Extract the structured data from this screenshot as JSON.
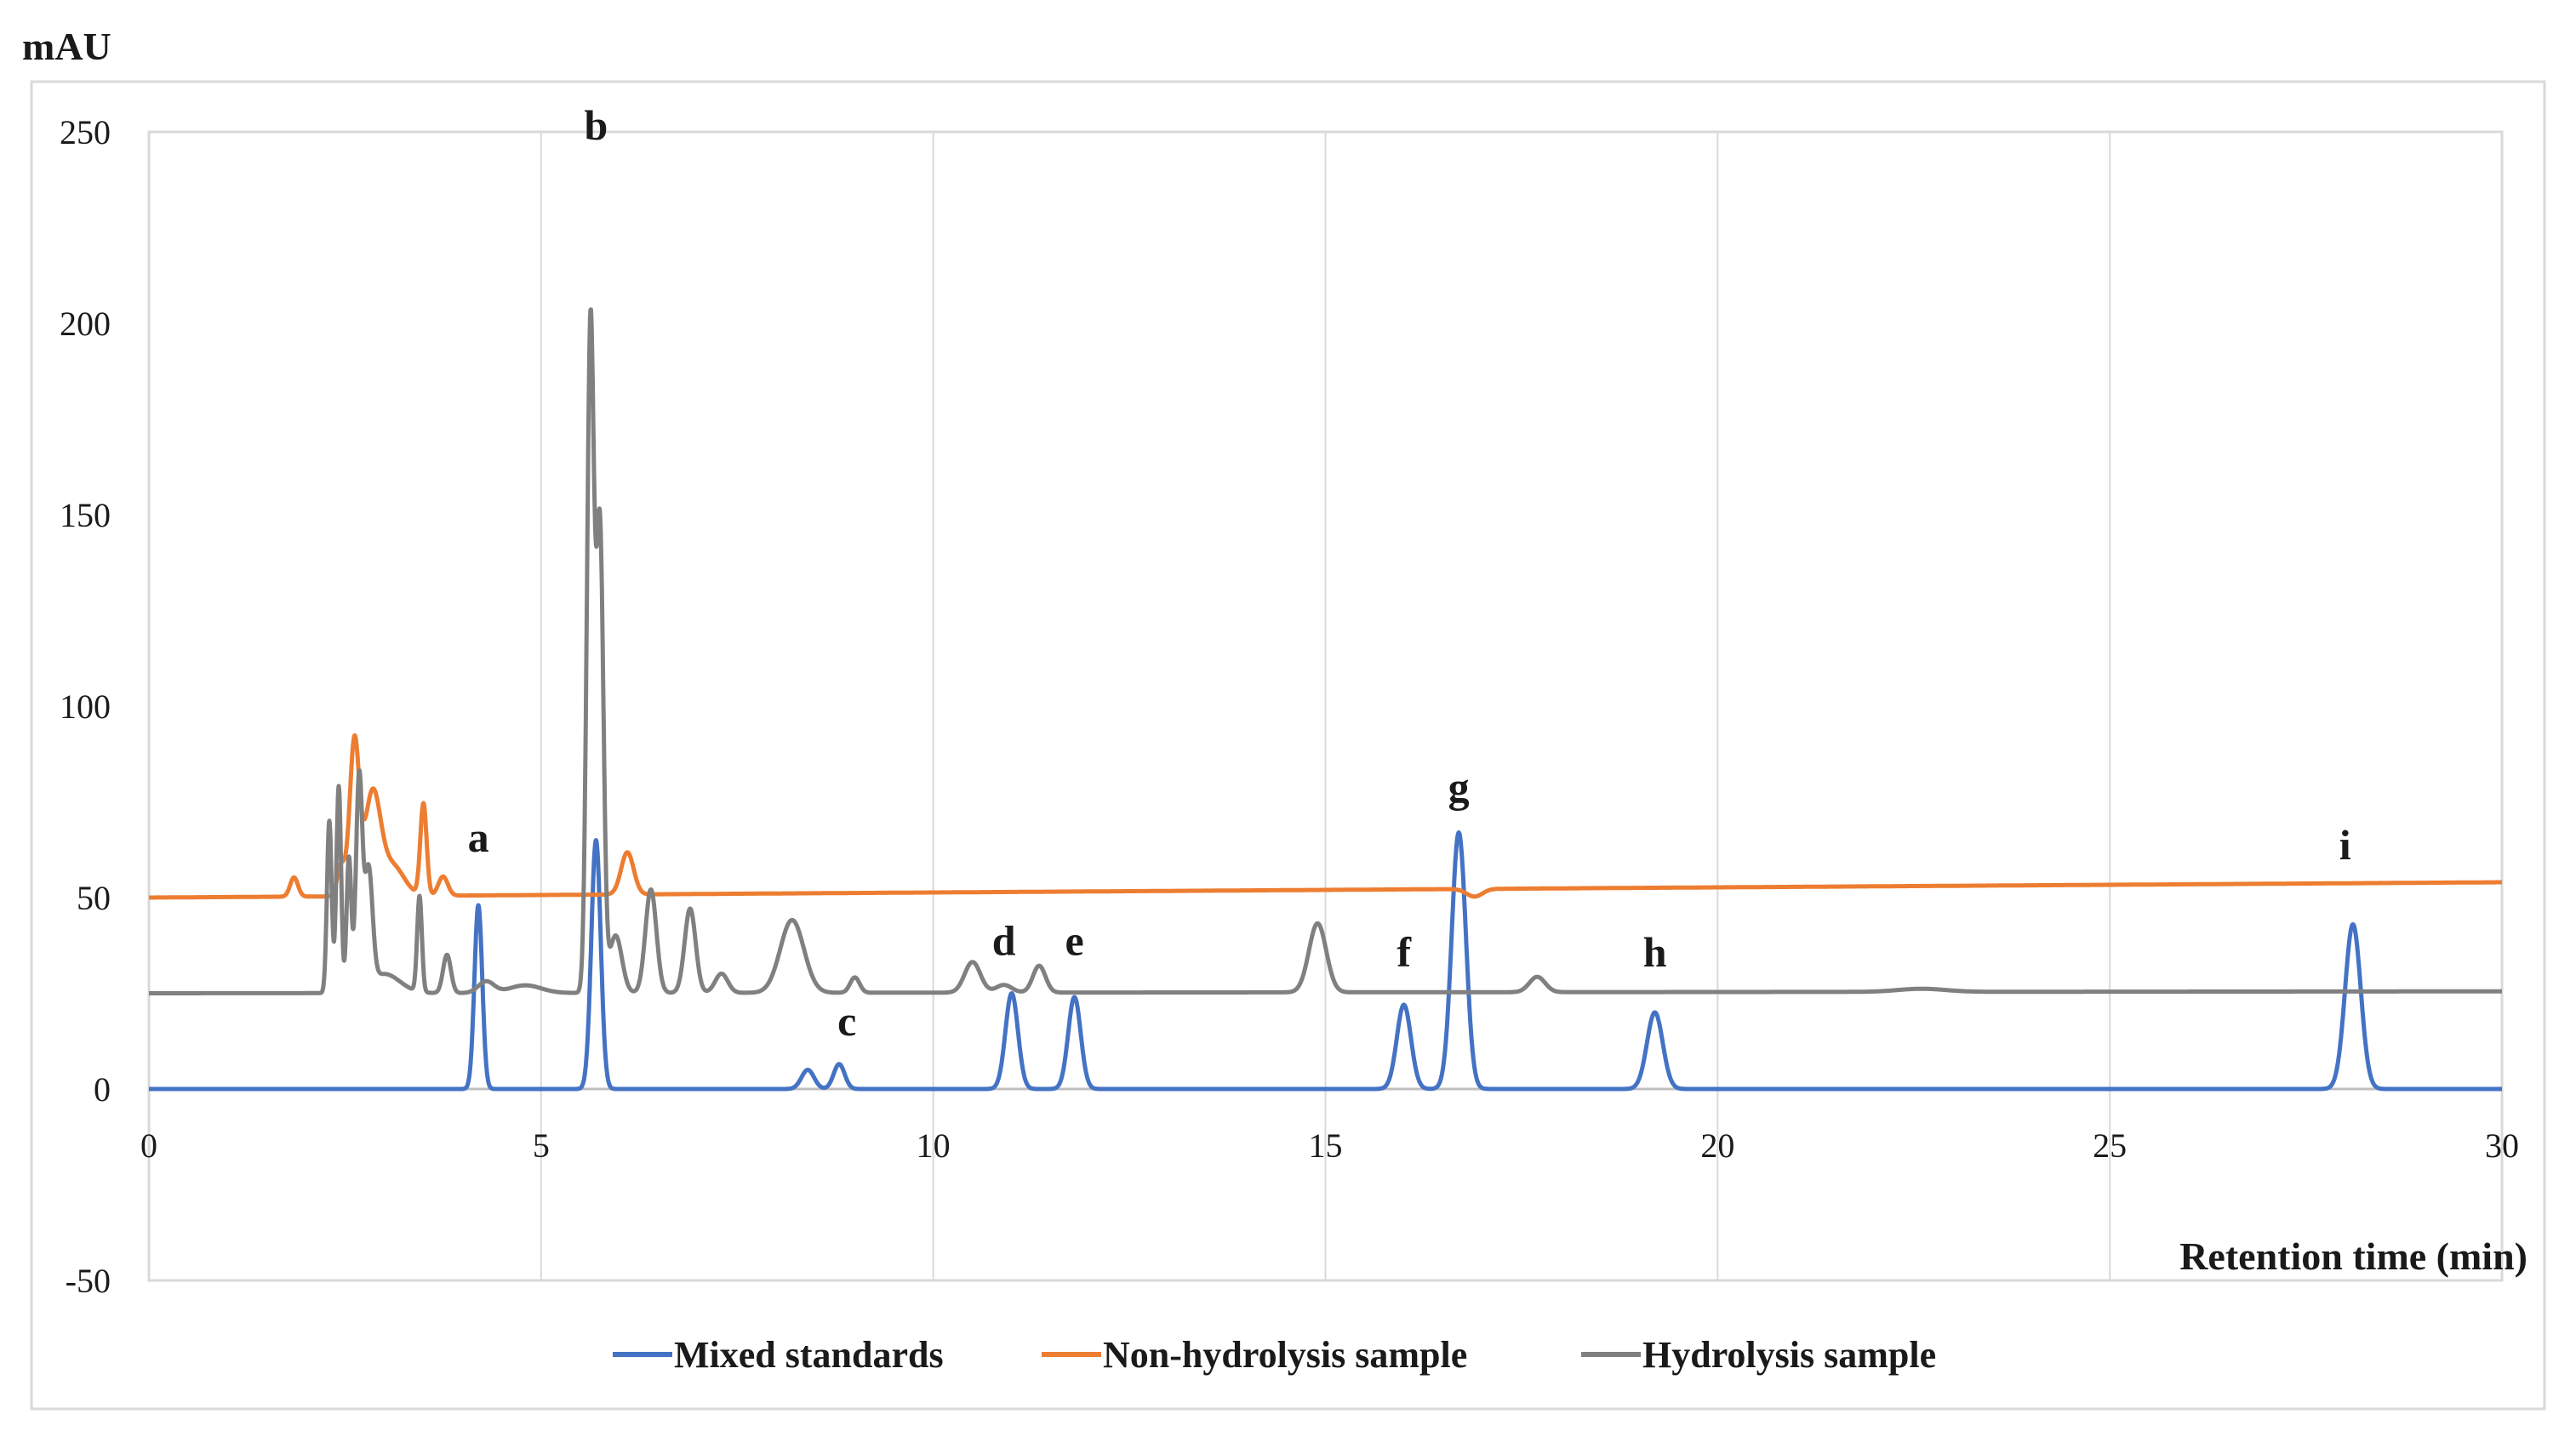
{
  "chart_data": {
    "type": "line",
    "title": "",
    "ylabel": "mAU",
    "xlabel": "Retention time (min)",
    "xlim": [
      0,
      30
    ],
    "ylim": [
      -50,
      250
    ],
    "xticks": [
      0,
      5,
      10,
      15,
      20,
      25,
      30
    ],
    "yticks": [
      -50,
      0,
      50,
      100,
      150,
      200,
      250
    ],
    "grid": "vertical",
    "legend_position": "bottom",
    "series": [
      {
        "name": "Mixed standards",
        "color": "#4472C4",
        "baseline": 0,
        "peaks": [
          [
            4.2,
            48,
            0.05
          ],
          [
            5.7,
            65,
            0.06
          ],
          [
            8.4,
            5,
            0.08
          ],
          [
            8.8,
            6.5,
            0.07
          ],
          [
            11.0,
            25,
            0.08
          ],
          [
            11.8,
            24,
            0.08
          ],
          [
            16.0,
            22,
            0.09
          ],
          [
            16.7,
            67,
            0.09
          ],
          [
            19.2,
            20,
            0.1
          ],
          [
            28.1,
            43,
            0.1
          ]
        ]
      },
      {
        "name": "Non-hydrolysis sample",
        "color": "#ED7D31",
        "baseline": 50,
        "baseline_end": 54,
        "peaks": [
          [
            1.85,
            5,
            0.05
          ],
          [
            2.45,
            8,
            0.05
          ],
          [
            2.62,
            40,
            0.06
          ],
          [
            2.85,
            26,
            0.1
          ],
          [
            3.1,
            8,
            0.15
          ],
          [
            3.5,
            24,
            0.04
          ],
          [
            3.75,
            5,
            0.06
          ],
          [
            6.1,
            11,
            0.08
          ],
          [
            16.9,
            -2,
            0.1
          ]
        ]
      },
      {
        "name": "Hydrolysis sample",
        "color": "#808080",
        "baseline": 25,
        "baseline_end": 25.5,
        "peaks": [
          [
            2.3,
            45,
            0.03
          ],
          [
            2.42,
            54,
            0.03
          ],
          [
            2.55,
            35,
            0.03
          ],
          [
            2.68,
            55,
            0.04
          ],
          [
            2.8,
            30,
            0.05
          ],
          [
            3.0,
            5,
            0.2
          ],
          [
            3.45,
            25,
            0.03
          ],
          [
            3.8,
            10,
            0.05
          ],
          [
            4.3,
            3,
            0.1
          ],
          [
            4.8,
            2,
            0.2
          ],
          [
            5.63,
            175,
            0.045
          ],
          [
            5.75,
            120,
            0.045
          ],
          [
            5.95,
            15,
            0.08
          ],
          [
            6.4,
            27,
            0.07
          ],
          [
            6.9,
            22,
            0.07
          ],
          [
            7.3,
            5,
            0.08
          ],
          [
            8.2,
            19,
            0.15
          ],
          [
            9.0,
            4,
            0.06
          ],
          [
            10.5,
            8,
            0.1
          ],
          [
            10.9,
            2,
            0.1
          ],
          [
            11.35,
            7,
            0.08
          ],
          [
            14.9,
            18,
            0.11
          ],
          [
            17.7,
            4,
            0.1
          ],
          [
            22.6,
            0.8,
            0.3
          ]
        ]
      }
    ],
    "annotations": [
      {
        "label": "a",
        "x": 4.2,
        "y": 62
      },
      {
        "label": "b",
        "x": 5.7,
        "y": 248
      },
      {
        "label": "c",
        "x": 8.9,
        "y": 14
      },
      {
        "label": "d",
        "x": 10.9,
        "y": 35
      },
      {
        "label": "e",
        "x": 11.8,
        "y": 35
      },
      {
        "label": "f",
        "x": 16.0,
        "y": 32
      },
      {
        "label": "g",
        "x": 16.7,
        "y": 75
      },
      {
        "label": "h",
        "x": 19.2,
        "y": 32
      },
      {
        "label": "i",
        "x": 28.0,
        "y": 60
      }
    ]
  }
}
